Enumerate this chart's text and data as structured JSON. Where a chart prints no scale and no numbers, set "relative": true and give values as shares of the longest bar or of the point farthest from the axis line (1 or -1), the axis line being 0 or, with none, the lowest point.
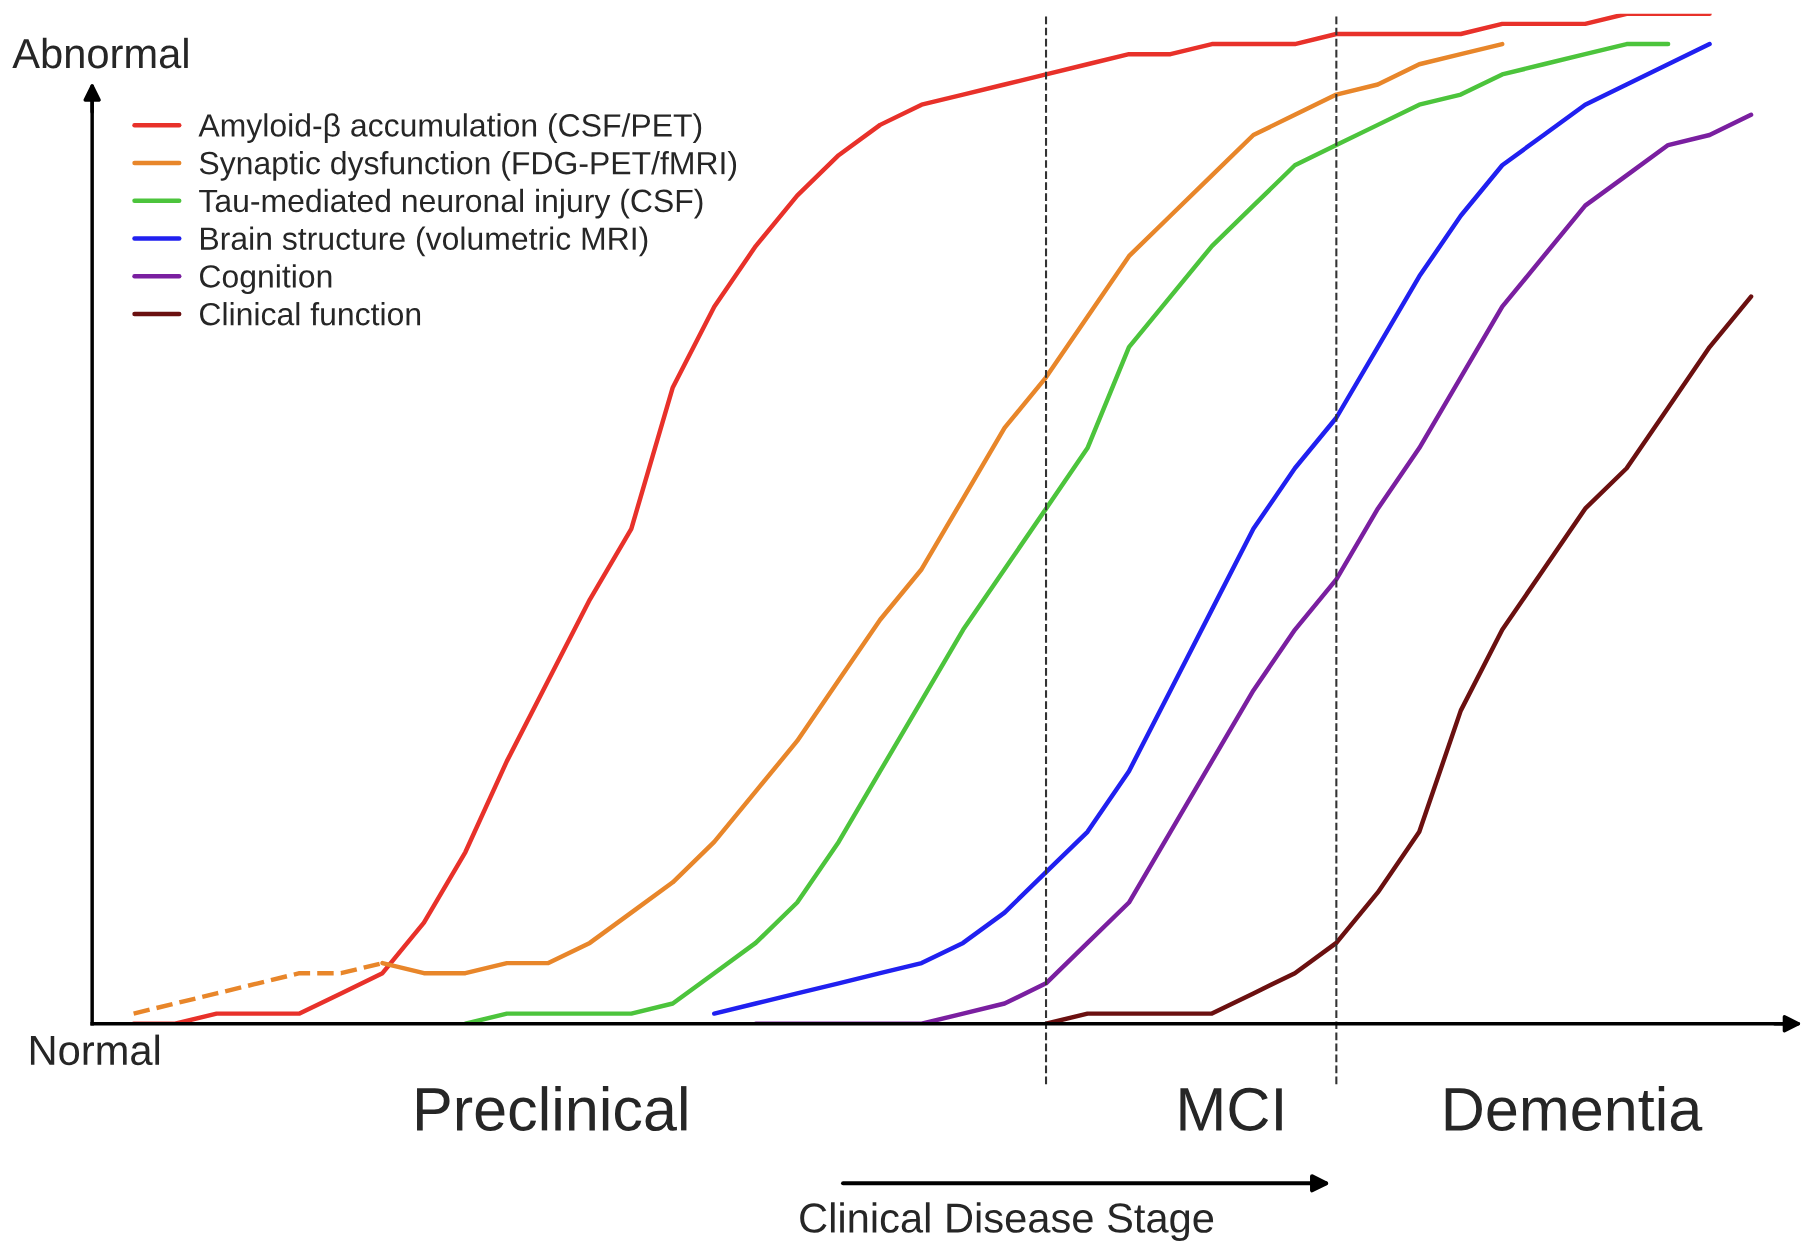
{
  "chart_data": {
    "type": "line",
    "relative": true,
    "xlabel": "Clinical Disease Stage",
    "legend": "top left",
    "line_style": "solid",
    "marker": "none",
    "categories": [
      null,
      null,
      null,
      null,
      null,
      null,
      null,
      null,
      null,
      null,
      null,
      null,
      null,
      null,
      null,
      null,
      null,
      null,
      null,
      null,
      null,
      null,
      null,
      null,
      null,
      null,
      null,
      null,
      null,
      null,
      null,
      null,
      null,
      null,
      null,
      null,
      null,
      null,
      null,
      null,
      null
    ],
    "series": [
      {
        "name": "Amyloid-β accumulation (CSF/PET)",
        "color": "#e8312a",
        "values": [
          null,
          0.0,
          0.0,
          0.01,
          0.01,
          0.01,
          0.03,
          0.05,
          0.1,
          0.17,
          0.26,
          0.34,
          0.42,
          0.49,
          0.63,
          0.71,
          0.77,
          0.82,
          0.86,
          0.89,
          0.91,
          0.92,
          0.93,
          0.94,
          0.95,
          0.96,
          0.96,
          0.97,
          0.97,
          0.97,
          0.98,
          0.98,
          0.98,
          0.98,
          0.99,
          0.99,
          0.99,
          1.0,
          1.0,
          1.0,
          null
        ]
      },
      {
        "color": "#e8862a",
        "line_style": "dashed",
        "values": [
          null,
          0.01,
          0.02,
          0.03,
          0.04,
          0.05,
          0.05,
          0.06,
          null,
          null,
          null,
          null,
          null,
          null,
          null,
          null,
          null,
          null,
          null,
          null,
          null,
          null,
          null,
          null,
          null,
          null,
          null,
          null,
          null,
          null,
          null,
          null,
          null,
          null,
          null,
          null,
          null,
          null,
          null,
          null,
          null
        ]
      },
      {
        "name": "Synaptic dysfunction (FDG-PET/fMRI)",
        "color": "#e8862a",
        "values": [
          null,
          null,
          null,
          null,
          null,
          null,
          null,
          0.06,
          0.05,
          0.05,
          0.06,
          0.06,
          0.08,
          0.11,
          0.14,
          0.18,
          0.23,
          0.28,
          0.34,
          0.4,
          0.45,
          0.52,
          0.59,
          0.64,
          0.7,
          0.76,
          0.8,
          0.84,
          0.88,
          0.9,
          0.92,
          0.93,
          0.95,
          0.96,
          0.97,
          null,
          null,
          null,
          null,
          null,
          null
        ]
      },
      {
        "name": "Tau-mediated neuronal injury (CSF)",
        "color": "#4cc43c",
        "values": [
          null,
          null,
          null,
          null,
          null,
          null,
          null,
          null,
          null,
          0.0,
          0.01,
          0.01,
          0.01,
          0.01,
          0.02,
          0.05,
          0.08,
          0.12,
          0.18,
          0.25,
          0.32,
          0.39,
          0.45,
          0.51,
          0.57,
          0.67,
          0.72,
          0.77,
          0.81,
          0.85,
          0.87,
          0.89,
          0.91,
          0.92,
          0.94,
          0.95,
          0.96,
          0.97,
          0.97,
          null,
          null
        ]
      },
      {
        "name": "Brain structure (volumetric MRI)",
        "color": "#2020f0",
        "values": [
          null,
          null,
          null,
          null,
          null,
          null,
          null,
          null,
          null,
          null,
          null,
          null,
          null,
          null,
          null,
          0.01,
          0.02,
          0.03,
          0.04,
          0.05,
          0.06,
          0.08,
          0.11,
          0.15,
          0.19,
          0.25,
          0.33,
          0.41,
          0.49,
          0.55,
          0.6,
          0.67,
          0.74,
          0.8,
          0.85,
          0.88,
          0.91,
          0.93,
          0.95,
          0.97,
          null
        ]
      },
      {
        "name": "Cognition",
        "color": "#7a1fa0",
        "values": [
          null,
          null,
          null,
          null,
          null,
          null,
          null,
          null,
          null,
          null,
          null,
          null,
          null,
          null,
          null,
          null,
          0.0,
          0.0,
          0.0,
          0.0,
          0.0,
          0.01,
          0.02,
          0.04,
          0.08,
          0.12,
          0.19,
          0.26,
          0.33,
          0.39,
          0.44,
          0.51,
          0.57,
          0.64,
          0.71,
          0.76,
          0.81,
          0.84,
          0.87,
          0.88,
          0.9
        ]
      },
      {
        "name": "Clinical function",
        "color": "#6b1010",
        "values": [
          null,
          null,
          null,
          null,
          null,
          null,
          null,
          null,
          null,
          null,
          null,
          null,
          null,
          null,
          null,
          null,
          null,
          null,
          null,
          null,
          null,
          null,
          null,
          0.0,
          0.01,
          0.01,
          0.01,
          0.01,
          0.03,
          0.05,
          0.08,
          0.13,
          0.19,
          0.31,
          0.39,
          0.45,
          0.51,
          0.55,
          0.61,
          0.67,
          0.72
        ]
      }
    ],
    "annotations": [
      "Abnormal",
      "Normal",
      "Preclinical",
      "MCI",
      "Dementia"
    ]
  }
}
